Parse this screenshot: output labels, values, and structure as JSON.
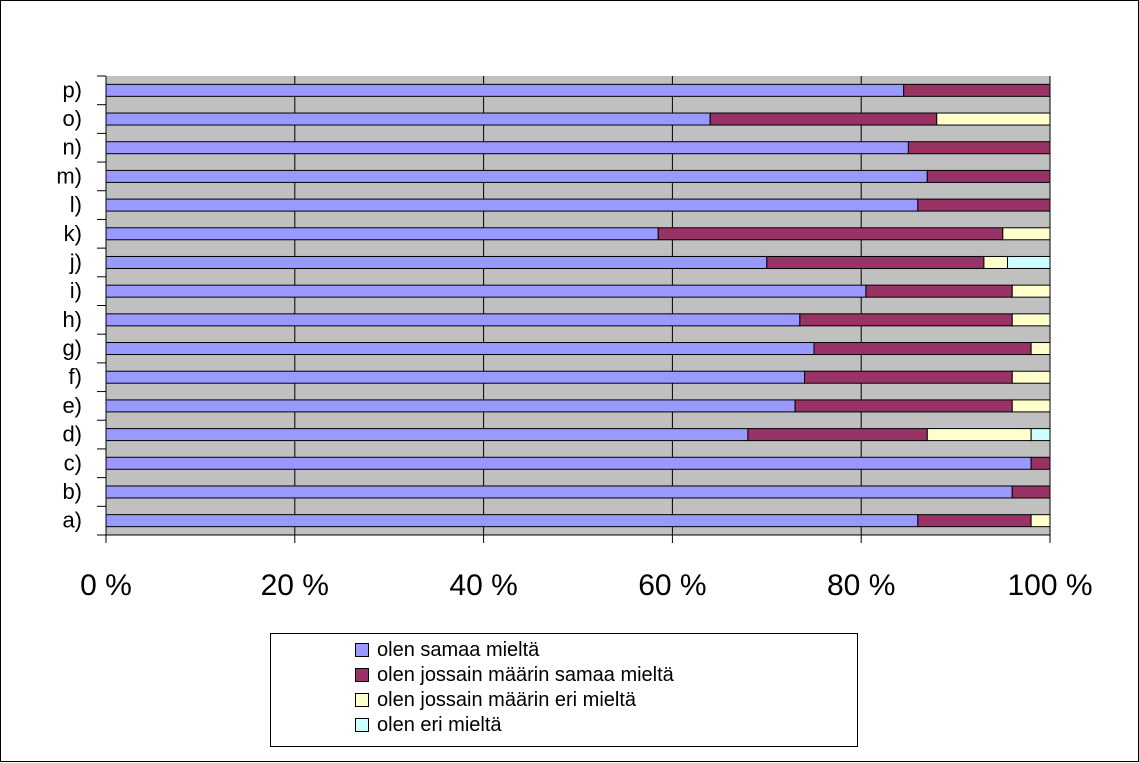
{
  "chart_data": {
    "type": "bar",
    "orientation": "horizontal",
    "stacked": "percent",
    "categories": [
      "a)",
      "b)",
      "c)",
      "d)",
      "e)",
      "f)",
      "g)",
      "h)",
      "i)",
      "j)",
      "k)",
      "l)",
      "m)",
      "n)",
      "o)",
      "p)"
    ],
    "series": [
      {
        "name": "olen samaa mieltä",
        "color": "#9999ff",
        "values": [
          86,
          96,
          98,
          68,
          73,
          74,
          75,
          73.5,
          80.5,
          70,
          58.5,
          86,
          87,
          85,
          64,
          84.5
        ]
      },
      {
        "name": "olen jossain määrin samaa mieltä",
        "color": "#993366",
        "values": [
          12,
          4,
          2,
          19,
          23,
          22,
          23,
          22.5,
          15.5,
          23,
          36.5,
          14,
          13,
          15,
          24,
          15.5
        ]
      },
      {
        "name": "olen jossain määrin eri mieltä",
        "color": "#ffffcc",
        "values": [
          2,
          0,
          0,
          11,
          4,
          4,
          2,
          4,
          4,
          2.5,
          5,
          0,
          0,
          0,
          12,
          0
        ]
      },
      {
        "name": "olen eri mieltä",
        "color": "#ccffff",
        "values": [
          0,
          0,
          0,
          2,
          0,
          0,
          0,
          0,
          0,
          4.5,
          0,
          0,
          0,
          0,
          0,
          0
        ]
      }
    ],
    "x_tick_labels": [
      "0 %",
      "20 %",
      "40 %",
      "60 %",
      "80 %",
      "100 %"
    ],
    "xlim": [
      0,
      100
    ],
    "grid": "vertical",
    "plot_background": "#c0c0c0",
    "legend_position": "bottom"
  }
}
